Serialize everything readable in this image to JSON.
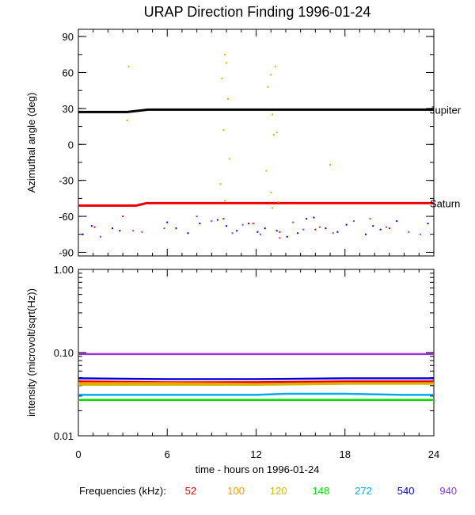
{
  "chart_data": {
    "title": "URAP Direction Finding  1996-01-24",
    "xlabel": "time - hours on 1996-01-24",
    "xlim": [
      0,
      24
    ],
    "xticks": [
      "0",
      "6",
      "12",
      "18",
      "24"
    ],
    "legend": {
      "label": "Frequencies (kHz):",
      "entries": [
        {
          "name": "52",
          "color": "#ee0000"
        },
        {
          "name": "100",
          "color": "#ff9900"
        },
        {
          "name": "120",
          "color": "#ccbb00"
        },
        {
          "name": "148",
          "color": "#00dd00"
        },
        {
          "name": "272",
          "color": "#00aaee"
        },
        {
          "name": "540",
          "color": "#0000dd"
        },
        {
          "name": "940",
          "color": "#9933dd"
        }
      ],
      "placement": "bottom"
    },
    "panels": [
      {
        "type": "scatter",
        "ylabel": "Azimuthal angle (deg)",
        "ylim": [
          -93,
          96
        ],
        "yticks": [
          "90",
          "60",
          "30",
          "0",
          "-30",
          "-60",
          "-90"
        ],
        "ytick_values": [
          90,
          60,
          30,
          0,
          -30,
          -60,
          -90
        ],
        "lines": [
          {
            "name": "Jupiter",
            "color": "#000000",
            "x": [
              0,
              3.3,
              4.7,
              24
            ],
            "y": [
              27,
              27,
              29,
              29
            ]
          },
          {
            "name": "Saturn",
            "color": "#ee0000",
            "x": [
              0,
              3.9,
              4.6,
              24
            ],
            "y": [
              -51,
              -51,
              -49,
              -49
            ]
          }
        ],
        "scatter_series": [
          {
            "name": "120",
            "color": "#ccbb00",
            "x": [
              3.4,
              9.9,
              10.0,
              10.1,
              9.8,
              9.7,
              10.2,
              13.0,
              13.3,
              12.8,
              13.1,
              13.4,
              13.2,
              12.7,
              13.0,
              13.5,
              9.6,
              9.9,
              13.1,
              17.0,
              3.3
            ],
            "y": [
              65,
              75,
              68,
              38,
              12,
              55,
              -12,
              58,
              65,
              48,
              25,
              10,
              8,
              -22,
              -40,
              -48,
              -33,
              -47,
              -53,
              -17,
              20
            ]
          },
          {
            "name": "540",
            "color": "#0000dd",
            "x": [
              0.3,
              0.9,
              2.3,
              2.8,
              6.0,
              7.4,
              8.2,
              9.4,
              10.0,
              10.7,
              11.5,
              12.6,
              13.4,
              14.1,
              14.8,
              15.9,
              16.7,
              17.5,
              18.1,
              19.4,
              20.4,
              21.5,
              23.6,
              6.6,
              12.1,
              15.4,
              19.9
            ],
            "y": [
              -75,
              -68,
              -70,
              -72,
              -65,
              -74,
              -66,
              -63,
              -68,
              -72,
              -66,
              -70,
              -72,
              -77,
              -74,
              -61,
              -70,
              -73,
              -67,
              -75,
              -71,
              -64,
              -66,
              -70,
              -73,
              -62,
              -68
            ]
          },
          {
            "name": "940",
            "color": "#9933dd",
            "x": [
              0.5,
              1.5,
              3.7,
              4.3,
              5.8,
              8.0,
              9.0,
              10.4,
              11.1,
              12.3,
              13.6,
              14.5,
              15.2,
              16.3,
              17.2,
              18.6,
              19.7,
              20.8,
              22.3,
              23.1
            ],
            "y": [
              -60,
              -77,
              -72,
              -73,
              -70,
              -60,
              -64,
              -74,
              -67,
              -75,
              -78,
              -65,
              -71,
              -69,
              -74,
              -64,
              -62,
              -69,
              -73,
              -75
            ]
          },
          {
            "name": "52",
            "color": "#ee0000",
            "x": [
              1.1,
              3.0,
              9.8,
              11.8,
              13.6,
              16.0,
              21.0
            ],
            "y": [
              -69,
              -60,
              -62,
              -66,
              -73,
              -71,
              -70
            ]
          }
        ]
      },
      {
        "type": "line",
        "ylabel": "intensity (microvolt/sqrt(Hz))",
        "scale": "log",
        "ylim": [
          0.01,
          1.0
        ],
        "yticks": [
          "1.00",
          "0.10",
          "0.01"
        ],
        "ytick_values": [
          1.0,
          0.1,
          0.01
        ],
        "series": [
          {
            "name": "940",
            "color": "#9933dd",
            "x": [
              0,
              6,
              12,
              18,
              24
            ],
            "y": [
              0.096,
              0.096,
              0.096,
              0.096,
              0.096
            ]
          },
          {
            "name": "540",
            "color": "#0000dd",
            "x": [
              0,
              6,
              12,
              18,
              24
            ],
            "y": [
              0.049,
              0.048,
              0.048,
              0.049,
              0.049
            ]
          },
          {
            "name": "52",
            "color": "#ee0000",
            "x": [
              0,
              6,
              12,
              18,
              24
            ],
            "y": [
              0.045,
              0.044,
              0.044,
              0.045,
              0.045
            ]
          },
          {
            "name": "100",
            "color": "#ff9900",
            "x": [
              0,
              6,
              12,
              18,
              24
            ],
            "y": [
              0.043,
              0.043,
              0.042,
              0.043,
              0.043
            ]
          },
          {
            "name": "120",
            "color": "#ccbb00",
            "x": [
              0,
              6,
              12,
              18,
              24
            ],
            "y": [
              0.041,
              0.041,
              0.041,
              0.042,
              0.042
            ]
          },
          {
            "name": "272",
            "color": "#00aaee",
            "x": [
              0,
              6,
              12,
              14,
              18,
              22,
              24
            ],
            "y": [
              0.031,
              0.031,
              0.031,
              0.032,
              0.032,
              0.031,
              0.031
            ]
          },
          {
            "name": "148",
            "color": "#00dd00",
            "x": [
              0,
              6,
              12,
              18,
              24
            ],
            "y": [
              0.027,
              0.027,
              0.027,
              0.027,
              0.027
            ]
          }
        ]
      }
    ]
  }
}
